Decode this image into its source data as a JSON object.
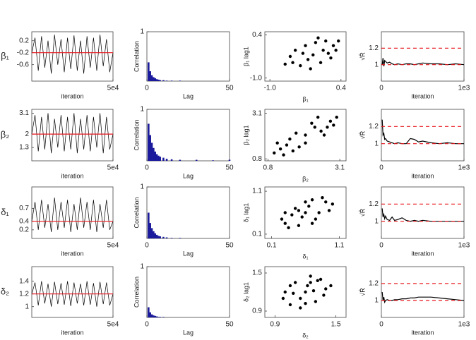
{
  "chart_data": [
    {
      "type": "line",
      "xlabel": "iteration",
      "ylabel": "β₁",
      "x": [
        0,
        2000,
        4000,
        6000,
        8000,
        10000,
        12000,
        14000,
        16000,
        18000,
        20000,
        22000,
        24000,
        26000,
        28000,
        30000,
        32000,
        34000,
        36000,
        38000,
        40000,
        42000,
        44000,
        46000,
        48000,
        50000
      ],
      "values": [
        -0.2,
        0.3,
        -0.8,
        0.35,
        -0.7,
        0.2,
        -0.9,
        0.4,
        -0.6,
        0.25,
        -0.85,
        0.3,
        -0.75,
        0.38,
        -0.8,
        0.2,
        -0.9,
        0.35,
        -0.7,
        0.3,
        -0.8,
        0.4,
        -0.65,
        0.25,
        -0.85,
        -0.2
      ],
      "color": "#000000",
      "xlim": [
        0,
        50000
      ],
      "xticks": [
        {
          "value": 50000,
          "label": "5e4"
        }
      ],
      "ylim": [
        -1.15,
        0.5
      ],
      "yticks": [
        0.2,
        -0.2,
        -0.6
      ],
      "hlines": [
        -0.2
      ],
      "hline_color": "#e8161b",
      "hline_dashed": false
    },
    {
      "type": "bar",
      "xlabel": "Lag",
      "ylabel": "Correlation",
      "x": [
        1,
        2,
        3,
        4,
        5,
        6,
        7,
        8,
        10,
        12,
        15,
        20,
        30,
        40,
        50
      ],
      "values": [
        0.38,
        0.2,
        0.12,
        0.08,
        0.06,
        0.04,
        0.03,
        0.02,
        0.02,
        0.01,
        0.01,
        0.01,
        0,
        0,
        0
      ],
      "color": "#1a1a9c",
      "xlim": [
        0,
        50
      ],
      "xticks": [
        0,
        50
      ],
      "ylim": [
        0,
        1
      ],
      "yticks": [
        1
      ]
    },
    {
      "type": "scatter",
      "xlabel": "β₁",
      "ylabel": "β₁ lag1",
      "x": [
        -0.15,
        0.25,
        -0.55,
        0.3,
        -0.6,
        0.1,
        -0.4,
        0.0,
        -0.3,
        0.2,
        -0.5,
        -0.1,
        0.35,
        -0.7,
        0.05,
        -0.25,
        0.15,
        -0.35,
        -0.05,
        -0.2
      ],
      "values": [
        -0.25,
        0.05,
        -0.5,
        -0.1,
        -0.3,
        0.2,
        -0.6,
        -0.5,
        0.05,
        -0.35,
        -0.1,
        0.15,
        0.2,
        -0.55,
        -0.1,
        -0.4,
        -0.2,
        -0.2,
        0.3,
        -0.7
      ],
      "color": "#000000",
      "xlim": [
        -1.1,
        0.5
      ],
      "xticks": [
        {
          "value": -1,
          "label": "-1.0"
        },
        0.4
      ],
      "ylim": [
        -1.1,
        0.5
      ],
      "yticks": [
        0.4,
        {
          "value": -1,
          "label": "-1.0"
        }
      ]
    },
    {
      "type": "line",
      "xlabel": "iteration",
      "ylabel": "√R̂",
      "x": [
        10,
        20,
        30,
        40,
        50,
        70,
        100,
        130,
        160,
        200,
        250,
        300,
        350,
        400,
        450,
        500,
        600,
        700,
        800,
        900,
        1000
      ],
      "values": [
        1.0,
        1.08,
        0.98,
        1.05,
        1.04,
        1.02,
        1.03,
        1.01,
        1.0,
        1.01,
        1.0,
        1.01,
        1.01,
        1.0,
        1.01,
        1.02,
        1.01,
        1.01,
        1.0,
        1.01,
        1.0
      ],
      "color": "#000000",
      "xlim": [
        0,
        1000
      ],
      "xticks": [
        0,
        {
          "value": 1000,
          "label": "1e3"
        }
      ],
      "ylim": [
        0.8,
        1.4
      ],
      "yticks": [
        1.2,
        1
      ],
      "hlines": [
        1.2,
        1
      ],
      "hline_color": "#e8161b",
      "hline_dashed": true
    },
    {
      "type": "line",
      "xlabel": "iteration",
      "ylabel": "β₂",
      "x": [
        0,
        2000,
        4000,
        6000,
        8000,
        10000,
        12000,
        14000,
        16000,
        18000,
        20000,
        22000,
        24000,
        26000,
        28000,
        30000,
        32000,
        34000,
        36000,
        38000,
        40000,
        42000,
        44000,
        46000,
        48000,
        50000
      ],
      "values": [
        2,
        3,
        1.1,
        2.9,
        1.2,
        3.1,
        1.0,
        2.8,
        1.3,
        3.0,
        1.1,
        2.9,
        1.2,
        3.1,
        1.0,
        2.8,
        1.2,
        3.0,
        1.1,
        2.9,
        1.3,
        3.1,
        1.0,
        2.9,
        1.2,
        2
      ],
      "color": "#000000",
      "xlim": [
        0,
        50000
      ],
      "xticks": [
        {
          "value": 50000,
          "label": "5e4"
        }
      ],
      "ylim": [
        0.6,
        3.3
      ],
      "yticks": [
        3.1,
        2,
        1.3
      ],
      "hlines": [
        2
      ],
      "hline_color": "#e8161b",
      "hline_dashed": false
    },
    {
      "type": "bar",
      "xlabel": "Lag",
      "ylabel": "Correlation",
      "x": [
        1,
        2,
        3,
        4,
        5,
        6,
        7,
        8,
        10,
        12,
        15,
        20,
        30,
        40,
        50
      ],
      "values": [
        0.72,
        0.5,
        0.35,
        0.25,
        0.18,
        0.13,
        0.1,
        0.08,
        0.06,
        0.04,
        0.03,
        0.02,
        0.02,
        0.01,
        0.02
      ],
      "color": "#1a1a9c",
      "xlim": [
        0,
        50
      ],
      "xticks": [
        0,
        50
      ],
      "ylim": [
        0,
        1
      ],
      "yticks": [
        1
      ]
    },
    {
      "type": "scatter",
      "xlabel": "β₂",
      "ylabel": "β₂ lag1",
      "x": [
        2,
        2.8,
        1.2,
        2.5,
        1.5,
        2.2,
        1.8,
        3.0,
        1.0,
        2.6,
        1.4,
        2.3,
        1.7,
        2.9,
        1.1,
        2.0,
        2.4,
        1.6,
        2.7,
        1.3
      ],
      "values": [
        2,
        2.7,
        1.3,
        2.2,
        1.8,
        2.6,
        1.4,
        2.9,
        1.1,
        2.0,
        1.5,
        2.4,
        2.1,
        2.5,
        1.6,
        1.6,
        2.9,
        1.2,
        2.4,
        1.0
      ],
      "color": "#000000",
      "xlim": [
        0.7,
        3.3
      ],
      "xticks": [
        0.8,
        3.1
      ],
      "ylim": [
        0.7,
        3.3
      ],
      "yticks": [
        3.1,
        0.8
      ]
    },
    {
      "type": "line",
      "xlabel": "iteration",
      "ylabel": "√R̂",
      "x": [
        10,
        20,
        30,
        40,
        50,
        70,
        100,
        130,
        160,
        200,
        250,
        300,
        350,
        400,
        450,
        500,
        600,
        700,
        800,
        900,
        1000
      ],
      "values": [
        1.28,
        1.1,
        1.12,
        1.05,
        1.06,
        1.03,
        1.02,
        1.01,
        1.0,
        1.01,
        1.0,
        1.0,
        1.06,
        1.05,
        1.02,
        1.03,
        1.01,
        1.0,
        1.01,
        1.0,
        1.0
      ],
      "color": "#000000",
      "xlim": [
        0,
        1000
      ],
      "xticks": [
        0,
        {
          "value": 1000,
          "label": "1e3"
        }
      ],
      "ylim": [
        0.8,
        1.4
      ],
      "yticks": [
        1.2,
        1
      ],
      "hlines": [
        1.2,
        1
      ],
      "hline_color": "#e8161b",
      "hline_dashed": true
    },
    {
      "type": "line",
      "xlabel": "iteration",
      "ylabel": "δ₁",
      "x": [
        0,
        2000,
        4000,
        6000,
        8000,
        10000,
        12000,
        14000,
        16000,
        18000,
        20000,
        22000,
        24000,
        26000,
        28000,
        30000,
        32000,
        34000,
        36000,
        38000,
        40000,
        42000,
        44000,
        46000,
        48000,
        50000
      ],
      "values": [
        0.4,
        0.85,
        0.2,
        0.9,
        0.25,
        0.8,
        0.15,
        0.95,
        0.2,
        0.85,
        0.25,
        0.9,
        0.15,
        0.8,
        0.2,
        0.95,
        0.25,
        0.85,
        0.2,
        0.9,
        0.15,
        0.8,
        0.25,
        0.9,
        0.2,
        0.4
      ],
      "color": "#000000",
      "xlim": [
        0,
        50000
      ],
      "xticks": [
        {
          "value": 50000,
          "label": "5e4"
        }
      ],
      "ylim": [
        0,
        1.2
      ],
      "yticks": [
        0.7,
        0.4,
        0.2
      ],
      "hlines": [
        0.4
      ],
      "hline_color": "#e8161b",
      "hline_dashed": false
    },
    {
      "type": "bar",
      "xlabel": "Lag",
      "ylabel": "Correlation",
      "x": [
        1,
        2,
        3,
        4,
        5,
        6,
        7,
        8,
        10,
        12,
        15,
        20,
        30,
        40,
        50
      ],
      "values": [
        0.5,
        0.3,
        0.2,
        0.14,
        0.1,
        0.07,
        0.05,
        0.04,
        0.03,
        0.02,
        0.01,
        0.01,
        0,
        0,
        0
      ],
      "color": "#1a1a9c",
      "xlim": [
        0,
        50
      ],
      "xticks": [
        0,
        50
      ],
      "ylim": [
        0,
        1
      ],
      "yticks": [
        1
      ]
    },
    {
      "type": "scatter",
      "xlabel": "δ₁",
      "ylabel": "δ₁ lag1",
      "x": [
        0.6,
        0.9,
        0.3,
        0.8,
        0.4,
        0.7,
        0.5,
        1.0,
        0.25,
        0.75,
        0.45,
        0.65,
        0.85,
        0.35,
        0.55,
        0.95,
        0.6,
        0.3,
        0.7,
        0.5
      ],
      "values": [
        0.6,
        0.85,
        0.35,
        0.6,
        0.55,
        0.9,
        0.3,
        0.8,
        0.45,
        0.45,
        0.7,
        0.75,
        0.95,
        0.25,
        0.5,
        0.65,
        0.85,
        0.6,
        0.35,
        0.65
      ],
      "color": "#000000",
      "xlim": [
        0,
        1.2
      ],
      "xticks": [
        0.1,
        1.1
      ],
      "ylim": [
        0,
        1.2
      ],
      "yticks": [
        1.1,
        0.1
      ]
    },
    {
      "type": "line",
      "xlabel": "iteration",
      "ylabel": "√R̂",
      "x": [
        10,
        20,
        30,
        40,
        50,
        70,
        100,
        130,
        160,
        200,
        250,
        300,
        350,
        400,
        450,
        500,
        600,
        700,
        800,
        900,
        1000
      ],
      "values": [
        1.15,
        1.05,
        1.08,
        1.03,
        1.06,
        1.02,
        1.01,
        1.05,
        1.01,
        1.02,
        1.04,
        1.01,
        1.0,
        1.01,
        1.0,
        1.01,
        1.0,
        1.0,
        1.0,
        1.0,
        1.0
      ],
      "color": "#000000",
      "xlim": [
        0,
        1000
      ],
      "xticks": [
        0,
        {
          "value": 1000,
          "label": "1e3"
        }
      ],
      "ylim": [
        0.8,
        1.4
      ],
      "yticks": [
        1.2,
        1
      ],
      "hlines": [
        1.2,
        1
      ],
      "hline_color": "#e8161b",
      "hline_dashed": true
    },
    {
      "type": "line",
      "xlabel": "iteration",
      "ylabel": "δ₂",
      "x": [
        0,
        2000,
        4000,
        6000,
        8000,
        10000,
        12000,
        14000,
        16000,
        18000,
        20000,
        22000,
        24000,
        26000,
        28000,
        30000,
        32000,
        34000,
        36000,
        38000,
        40000,
        42000,
        44000,
        46000,
        48000,
        50000
      ],
      "values": [
        1.2,
        1.38,
        1.02,
        1.4,
        1.05,
        1.36,
        1.0,
        1.39,
        1.04,
        1.37,
        1.03,
        1.4,
        1.01,
        1.38,
        1.05,
        1.36,
        1.02,
        1.4,
        1.03,
        1.37,
        1.0,
        1.39,
        1.04,
        1.38,
        1.02,
        1.2
      ],
      "color": "#000000",
      "xlim": [
        0,
        50000
      ],
      "xticks": [
        {
          "value": 50000,
          "label": "5e4"
        }
      ],
      "ylim": [
        0.83,
        1.63
      ],
      "yticks": [
        1.4,
        1.2,
        1
      ],
      "hlines": [
        1.2
      ],
      "hline_color": "#e8161b",
      "hline_dashed": false
    },
    {
      "type": "bar",
      "xlabel": "Lag",
      "ylabel": "Correlation",
      "x": [
        1,
        2,
        3,
        4,
        5,
        6,
        7,
        8,
        10,
        12,
        15,
        20,
        30,
        40,
        50
      ],
      "values": [
        0.2,
        0.1,
        0.06,
        0.04,
        0.03,
        0.02,
        0.01,
        0.01,
        0.01,
        0,
        0,
        0,
        0,
        0,
        0
      ],
      "color": "#1a1a9c",
      "xlim": [
        0,
        50
      ],
      "xticks": [
        0,
        50
      ],
      "ylim": [
        0,
        1
      ],
      "yticks": [
        1
      ]
    },
    {
      "type": "scatter",
      "xlabel": "δ₂",
      "ylabel": "δ₂ lag1",
      "x": [
        1.2,
        1.35,
        1.05,
        1.4,
        1.0,
        1.25,
        1.15,
        1.45,
        0.98,
        1.3,
        1.1,
        1.22,
        1.38,
        1.05,
        1.28,
        1.15,
        1.32,
        1.08,
        1.2,
        1.25
      ],
      "values": [
        1.2,
        1.4,
        1.0,
        1.25,
        1.2,
        1.45,
        0.95,
        1.3,
        1.1,
        1.05,
        1.35,
        1.3,
        1.15,
        1.3,
        1.22,
        1.1,
        1.38,
        1.18,
        1.02,
        1.35
      ],
      "color": "#000000",
      "xlim": [
        0.8,
        1.6
      ],
      "xticks": [
        0.9,
        1.5
      ],
      "ylim": [
        0.8,
        1.6
      ],
      "yticks": [
        1.5,
        0.9
      ]
    },
    {
      "type": "line",
      "xlabel": "iteration",
      "ylabel": "√R̂",
      "x": [
        10,
        20,
        30,
        40,
        50,
        70,
        100,
        130,
        160,
        200,
        250,
        300,
        350,
        400,
        450,
        500,
        600,
        700,
        800,
        900,
        1000
      ],
      "values": [
        1.1,
        1.0,
        1.04,
        0.98,
        1.0,
        1.01,
        1.0,
        1.0,
        1.01,
        1.01,
        1.02,
        1.02,
        1.03,
        1.03,
        1.04,
        1.04,
        1.04,
        1.03,
        1.02,
        1.01,
        1.0
      ],
      "color": "#000000",
      "xlim": [
        0,
        1000
      ],
      "xticks": [
        0,
        {
          "value": 1000,
          "label": "1e3"
        }
      ],
      "ylim": [
        0.8,
        1.4
      ],
      "yticks": [
        1.2,
        1
      ],
      "hlines": [
        1.2,
        1
      ],
      "hline_color": "#e8161b",
      "hline_dashed": true
    }
  ]
}
